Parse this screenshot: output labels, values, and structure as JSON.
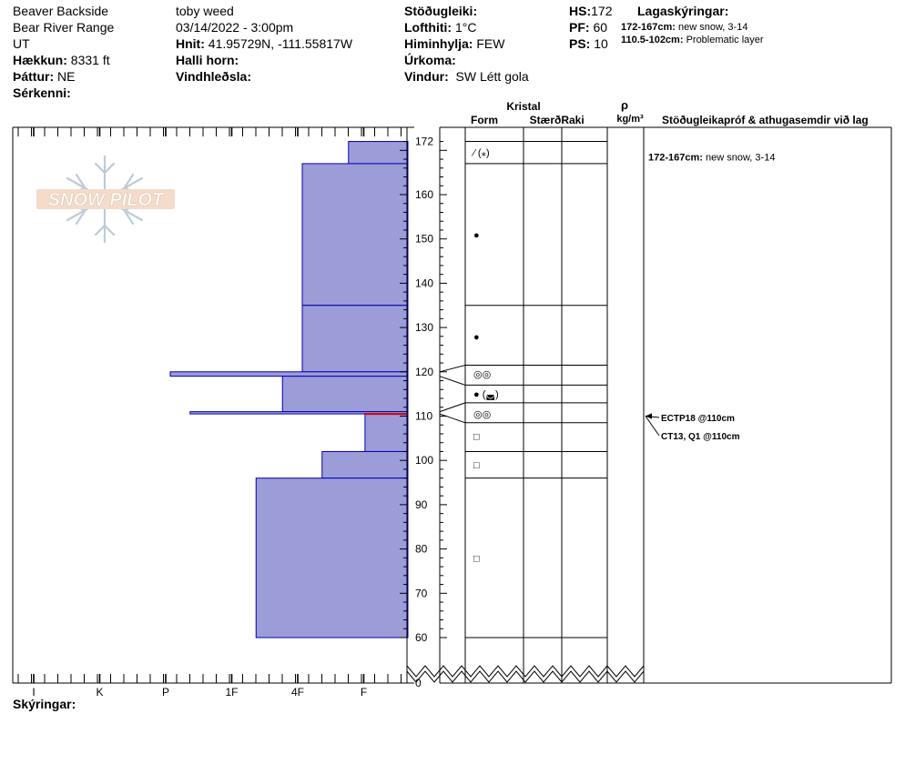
{
  "header": {
    "location": "Beaver Backside",
    "range": "Bear River Range",
    "state": "UT",
    "elevation_label": "Hækkun:",
    "elevation_value": "8331 ft",
    "aspect_label": "Þáttur:",
    "aspect_value": "NE",
    "features_label": "Sérkenni:",
    "observer": "toby weed",
    "datetime": "03/14/2022 - 3:00pm",
    "coords_label": "Hnit:",
    "coords_value": "41.95729N, -111.55817W",
    "slope_label": "Halli horn:",
    "wind_loading_label": "Vindhleðsla:",
    "stability_label": "Stöðugleiki:",
    "air_temp_label": "Lofthiti:",
    "air_temp_value": "1°C",
    "sky_label": "Himinhylja:",
    "sky_value": "FEW",
    "precip_label": "Úrkoma:",
    "wind_label": "Vindur:",
    "wind_value": "SW Létt gola",
    "hs_label": "HS:",
    "hs_value": "172",
    "pf_label": "PF:",
    "pf_value": "60",
    "ps_label": "PS:",
    "ps_value": "10",
    "layer_legend_title": "Lagaskýringar:",
    "layer_legend": [
      {
        "range": "172-167cm:",
        "text": "new snow, 3-14"
      },
      {
        "range": "110.5-102cm:",
        "text": "Problematic layer"
      }
    ]
  },
  "columns": {
    "crystal": "Kristal",
    "form": "Form",
    "size": "Stærð",
    "moisture": "Raki",
    "density_symbol": "ρ",
    "density_unit": "kg/m³",
    "comments": "Stöðugleikapróf & athugasemdir við lag"
  },
  "footer": {
    "notes_label": "Skýringar:"
  },
  "logo": {
    "text": "SNOW PILOT"
  },
  "chart_data": {
    "type": "snow-profile",
    "hardness_scale": [
      "I",
      "K",
      "P",
      "1F",
      "4F",
      "F"
    ],
    "height_ticks": [
      172,
      160,
      150,
      140,
      130,
      120,
      110,
      100,
      90,
      80,
      70,
      60,
      0
    ],
    "layers": [
      {
        "top": 172,
        "bottom": 167,
        "hardness": 0.9
      },
      {
        "top": 167,
        "bottom": 135,
        "hardness": 1.6
      },
      {
        "top": 135,
        "bottom": 120,
        "hardness": 1.6
      },
      {
        "top": 120,
        "bottom": 119,
        "hardness": 3.6
      },
      {
        "top": 119,
        "bottom": 111,
        "hardness": 1.9
      },
      {
        "top": 111,
        "bottom": 110.5,
        "hardness": 3.3
      },
      {
        "top": 110.5,
        "bottom": 102,
        "hardness": 0.65
      },
      {
        "top": 102,
        "bottom": 96,
        "hardness": 1.3
      },
      {
        "top": 96,
        "bottom": 60,
        "hardness": 2.3
      }
    ],
    "layer_boundaries": [
      172,
      167,
      135,
      121.5,
      117,
      113,
      108.5,
      102,
      96,
      60
    ],
    "grain_forms": [
      {
        "height": 169.5,
        "symbol": "⁄ (⁎)"
      },
      {
        "height": 151,
        "symbol": "●"
      },
      {
        "height": 128,
        "symbol": "●"
      },
      {
        "height": 119.5,
        "symbol": "◎◎"
      },
      {
        "height": 115,
        "symbol": "● (◛)"
      },
      {
        "height": 110.5,
        "symbol": "◎◎"
      },
      {
        "height": 105.5,
        "symbol": "□"
      },
      {
        "height": 99,
        "symbol": "□"
      },
      {
        "height": 78,
        "symbol": "□"
      }
    ],
    "layer_comments": [
      {
        "height": 169.5,
        "range": "172-167cm:",
        "text": "new snow, 3-14"
      }
    ],
    "stability_tests": [
      {
        "height": 110,
        "text": "ECTP18 @110cm"
      },
      {
        "height": 110,
        "text": "CT13, Q1 @110cm"
      }
    ],
    "problem_layer_height": 110.5
  }
}
